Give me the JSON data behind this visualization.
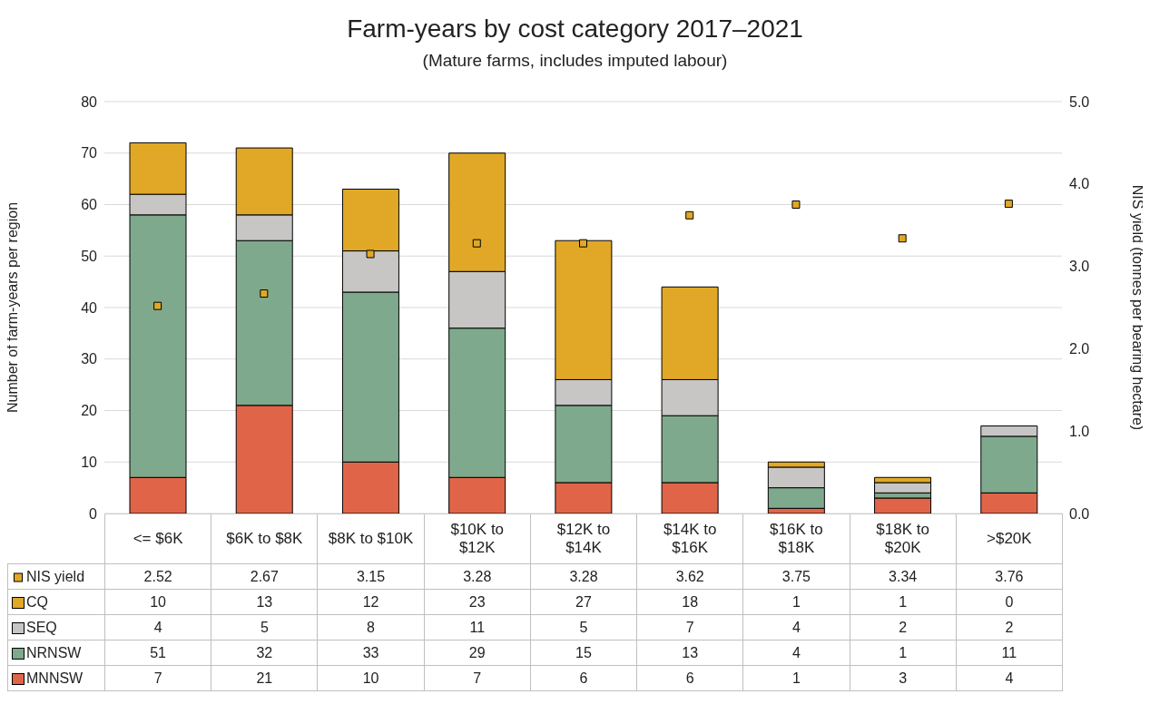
{
  "chart_data": {
    "type": "bar",
    "title": "Farm-years by cost category 2017–2021",
    "subtitle": "(Mature farms, includes imputed labour)",
    "ylabel": "Number of farm-years per region",
    "y2label": "NIS yield (tonnes per bearing hectare)",
    "categories": [
      "<= $6K",
      "$6K to $8K",
      "$8K to $10K",
      "$10K to $12K",
      "$12K to $14K",
      "$14K to $16K",
      "$16K to $18K",
      "$18K to $20K",
      ">$20K"
    ],
    "stacked": true,
    "ylim": [
      0,
      80
    ],
    "yticks": [
      0,
      10,
      20,
      30,
      40,
      50,
      60,
      70,
      80
    ],
    "y2lim": [
      0,
      5
    ],
    "y2ticks": [
      {
        "value": 0,
        "label": "0.0"
      },
      {
        "value": 1,
        "label": "1.0"
      },
      {
        "value": 2,
        "label": "2.0"
      },
      {
        "value": 3,
        "label": "3.0"
      },
      {
        "value": 4,
        "label": "4.0"
      },
      {
        "value": 5,
        "label": "5.0"
      }
    ],
    "grid": "y",
    "legend": "bottom",
    "data_labels": true,
    "marker": "square",
    "series": [
      {
        "name": "MNNSW",
        "color": "#e06548",
        "values": [
          7,
          21,
          10,
          7,
          6,
          6,
          1,
          3,
          4
        ]
      },
      {
        "name": "NRNSW",
        "color": "#7fa98c",
        "values": [
          51,
          32,
          33,
          29,
          15,
          13,
          4,
          1,
          11
        ]
      },
      {
        "name": "SEQ",
        "color": "#c8c6c5",
        "values": [
          4,
          5,
          8,
          11,
          5,
          7,
          4,
          2,
          2
        ]
      },
      {
        "name": "CQ",
        "color": "#e0a826",
        "values": [
          10,
          13,
          12,
          23,
          27,
          18,
          1,
          1,
          0
        ]
      },
      {
        "name": "NIS yield",
        "type": "scatter",
        "axis": "y2",
        "color": "#e0a826",
        "values": [
          2.52,
          2.67,
          3.15,
          3.28,
          3.28,
          3.62,
          3.75,
          3.34,
          3.76
        ]
      }
    ]
  }
}
